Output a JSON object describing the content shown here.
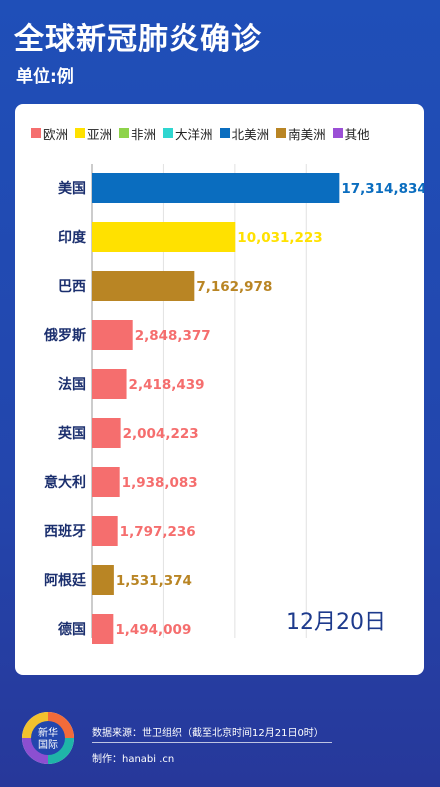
{
  "header": {
    "title": "全球新冠肺炎确诊",
    "unit": "单位:例"
  },
  "legend": [
    {
      "label": "欧洲",
      "color": "#f56e6e"
    },
    {
      "label": "亚洲",
      "color": "#ffe100"
    },
    {
      "label": "非洲",
      "color": "#8ed34a"
    },
    {
      "label": "大洋洲",
      "color": "#2fd6d0"
    },
    {
      "label": "北美洲",
      "color": "#0a6dbf"
    },
    {
      "label": "南美洲",
      "color": "#b98524"
    },
    {
      "label": "其他",
      "color": "#9b4fd6"
    }
  ],
  "date_label": "12月20日",
  "footer": {
    "logo_text_top": "新华",
    "logo_text_bottom": "国际",
    "source": "数据来源：世卫组织（截至北京时间12月21日0时）",
    "made_by": "制作：hanabi .cn"
  },
  "chart_data": {
    "type": "bar",
    "orientation": "horizontal",
    "title": "全球新冠肺炎确诊",
    "unit": "单位:例",
    "categories": [
      "美国",
      "印度",
      "巴西",
      "俄罗斯",
      "法国",
      "英国",
      "意大利",
      "西班牙",
      "阿根廷",
      "德国"
    ],
    "values": [
      17314834,
      10031223,
      7162978,
      2848377,
      2418439,
      2004223,
      1938083,
      1797236,
      1531374,
      1494009
    ],
    "value_labels": [
      "17,314,834",
      "10,031,223",
      "7,162,978",
      "2,848,377",
      "2,418,439",
      "2,004,223",
      "1,938,083",
      "1,797,236",
      "1,531,374",
      "1,494,009"
    ],
    "regions": [
      "北美洲",
      "亚洲",
      "南美洲",
      "欧洲",
      "欧洲",
      "欧洲",
      "欧洲",
      "欧洲",
      "南美洲",
      "欧洲"
    ],
    "region_colors": {
      "欧洲": "#f56e6e",
      "亚洲": "#ffe100",
      "非洲": "#8ed34a",
      "大洋洲": "#2fd6d0",
      "北美洲": "#0a6dbf",
      "南美洲": "#b98524",
      "其他": "#9b4fd6"
    },
    "xlim": [
      0,
      17500000
    ],
    "grid": true,
    "legend_position": "top"
  }
}
